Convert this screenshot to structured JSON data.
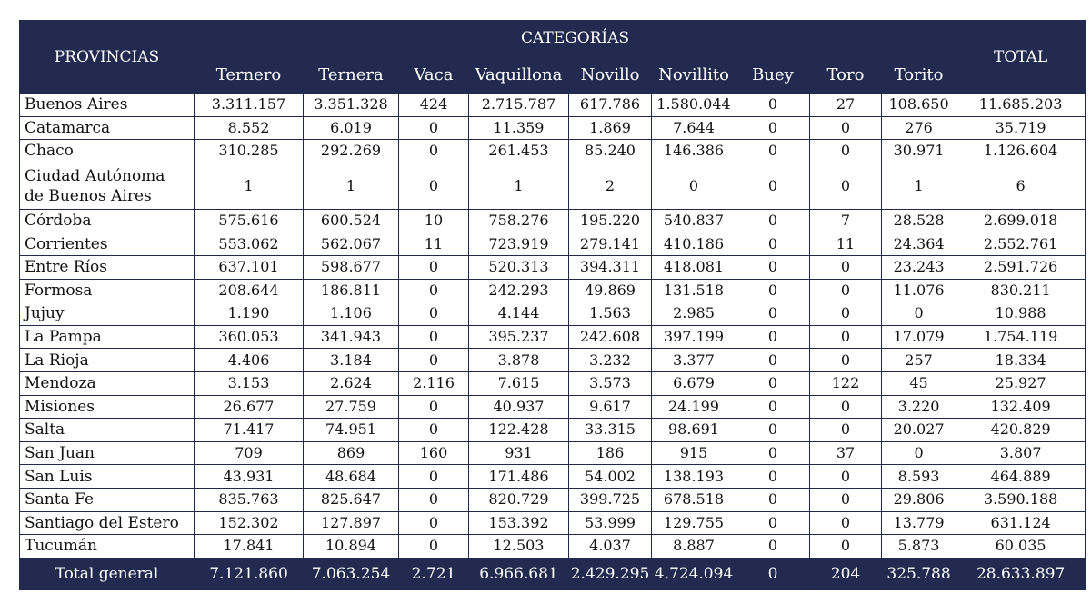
{
  "header": {
    "provincias": "PROVINCIAS",
    "categorias": "CATEGORÍAS",
    "total": "TOTAL",
    "columns": [
      "Ternero",
      "Ternera",
      "Vaca",
      "Vaquillona",
      "Novillo",
      "Novillito",
      "Buey",
      "Toro",
      "Torito"
    ]
  },
  "rows": [
    {
      "name": "Buenos Aires",
      "values": [
        "3.311.157",
        "3.351.328",
        "424",
        "2.715.787",
        "617.786",
        "1.580.044",
        "0",
        "27",
        "108.650"
      ],
      "total": "11.685.203"
    },
    {
      "name": "Catamarca",
      "values": [
        "8.552",
        "6.019",
        "0",
        "11.359",
        "1.869",
        "7.644",
        "0",
        "0",
        "276"
      ],
      "total": "35.719"
    },
    {
      "name": "Chaco",
      "values": [
        "310.285",
        "292.269",
        "0",
        "261.453",
        "85.240",
        "146.386",
        "0",
        "0",
        "30.971"
      ],
      "total": "1.126.604"
    },
    {
      "name": "Ciudad Autónoma de Buenos Aires",
      "name_line1": "Ciudad Autónoma",
      "name_line2": "de Buenos Aires",
      "values": [
        "1",
        "1",
        "0",
        "1",
        "2",
        "0",
        "0",
        "0",
        "1"
      ],
      "total": "6"
    },
    {
      "name": "Córdoba",
      "values": [
        "575.616",
        "600.524",
        "10",
        "758.276",
        "195.220",
        "540.837",
        "0",
        "7",
        "28.528"
      ],
      "total": "2.699.018"
    },
    {
      "name": "Corrientes",
      "values": [
        "553.062",
        "562.067",
        "11",
        "723.919",
        "279.141",
        "410.186",
        "0",
        "11",
        "24.364"
      ],
      "total": "2.552.761"
    },
    {
      "name": "Entre Ríos",
      "values": [
        "637.101",
        "598.677",
        "0",
        "520.313",
        "394.311",
        "418.081",
        "0",
        "0",
        "23.243"
      ],
      "total": "2.591.726"
    },
    {
      "name": "Formosa",
      "values": [
        "208.644",
        "186.811",
        "0",
        "242.293",
        "49.869",
        "131.518",
        "0",
        "0",
        "11.076"
      ],
      "total": "830.211"
    },
    {
      "name": "Jujuy",
      "values": [
        "1.190",
        "1.106",
        "0",
        "4.144",
        "1.563",
        "2.985",
        "0",
        "0",
        "0"
      ],
      "total": "10.988"
    },
    {
      "name": "La Pampa",
      "values": [
        "360.053",
        "341.943",
        "0",
        "395.237",
        "242.608",
        "397.199",
        "0",
        "0",
        "17.079"
      ],
      "total": "1.754.119"
    },
    {
      "name": "La Rioja",
      "values": [
        "4.406",
        "3.184",
        "0",
        "3.878",
        "3.232",
        "3.377",
        "0",
        "0",
        "257"
      ],
      "total": "18.334"
    },
    {
      "name": "Mendoza",
      "values": [
        "3.153",
        "2.624",
        "2.116",
        "7.615",
        "3.573",
        "6.679",
        "0",
        "122",
        "45"
      ],
      "total": "25.927"
    },
    {
      "name": "Misiones",
      "values": [
        "26.677",
        "27.759",
        "0",
        "40.937",
        "9.617",
        "24.199",
        "0",
        "0",
        "3.220"
      ],
      "total": "132.409"
    },
    {
      "name": "Salta",
      "values": [
        "71.417",
        "74.951",
        "0",
        "122.428",
        "33.315",
        "98.691",
        "0",
        "0",
        "20.027"
      ],
      "total": "420.829"
    },
    {
      "name": "San Juan",
      "values": [
        "709",
        "869",
        "160",
        "931",
        "186",
        "915",
        "0",
        "37",
        "0"
      ],
      "total": "3.807"
    },
    {
      "name": "San Luis",
      "values": [
        "43.931",
        "48.684",
        "0",
        "171.486",
        "54.002",
        "138.193",
        "0",
        "0",
        "8.593"
      ],
      "total": "464.889"
    },
    {
      "name": "Santa Fe",
      "values": [
        "835.763",
        "825.647",
        "0",
        "820.729",
        "399.725",
        "678.518",
        "0",
        "0",
        "29.806"
      ],
      "total": "3.590.188"
    },
    {
      "name": "Santiago del Estero",
      "values": [
        "152.302",
        "127.897",
        "0",
        "153.392",
        "53.999",
        "129.755",
        "0",
        "0",
        "13.779"
      ],
      "total": "631.124"
    },
    {
      "name": "Tucumán",
      "values": [
        "17.841",
        "10.894",
        "0",
        "12.503",
        "4.037",
        "8.887",
        "0",
        "0",
        "5.873"
      ],
      "total": "60.035"
    }
  ],
  "footer": {
    "label": "Total general",
    "values": [
      "7.121.860",
      "7.063.254",
      "2.721",
      "6.966.681",
      "2.429.295",
      "4.724.094",
      "0",
      "204",
      "325.788"
    ],
    "total": "28.633.897"
  },
  "colors": {
    "header_bg": "#222a4f",
    "header_text": "#ffffff",
    "border": "#1f2a4d"
  }
}
